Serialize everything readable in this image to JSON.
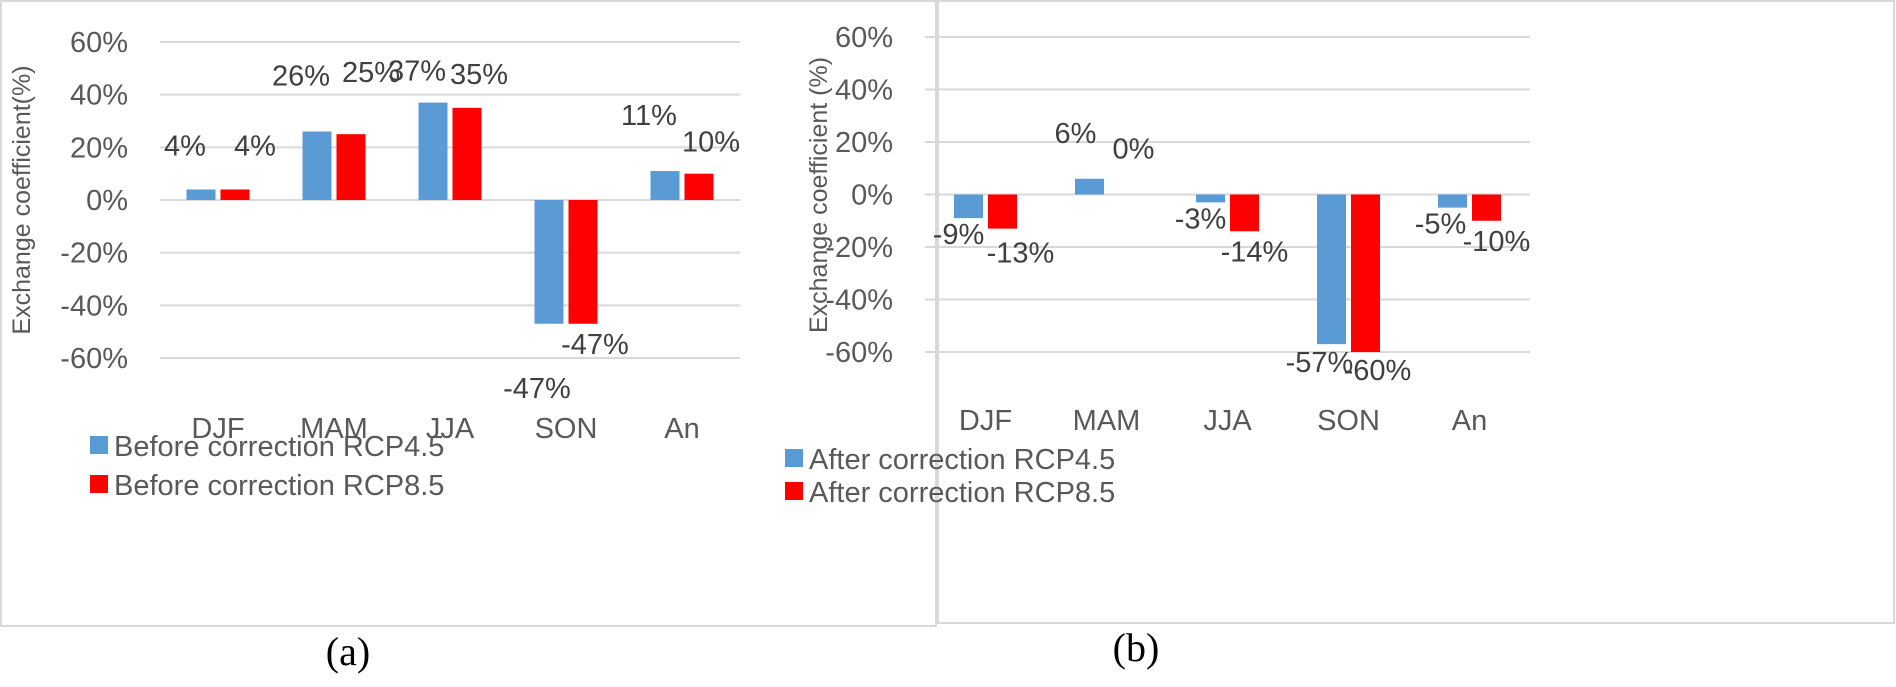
{
  "chart_data": [
    {
      "type": "bar",
      "panel_label": "(a)",
      "ylabel": "Exchange coefficient(%)",
      "xlabel": "",
      "categories": [
        "DJF",
        "MAM",
        "JJA",
        "SON",
        "An"
      ],
      "ylim": [
        -60,
        60
      ],
      "yticks": [
        60,
        40,
        20,
        0,
        -20,
        -40,
        -60
      ],
      "ytick_labels": [
        "60%",
        "40%",
        "20%",
        "0%",
        "-20%",
        "-40%",
        "-60%"
      ],
      "grid": true,
      "legend_position": "bottom-left",
      "series": [
        {
          "name": "Before correction RCP4.5",
          "color": "#5B9BD5",
          "values": [
            4,
            26,
            37,
            -47,
            11
          ],
          "labels": [
            "4%",
            "26%",
            "37%",
            "-47%",
            "11%"
          ]
        },
        {
          "name": "Before correction RCP8.5",
          "color": "#FF0000",
          "values": [
            4,
            25,
            35,
            -47,
            10
          ],
          "labels": [
            "4%",
            "25%",
            "35%",
            "-47%",
            "10%"
          ]
        }
      ]
    },
    {
      "type": "bar",
      "panel_label": "(b)",
      "ylabel": "Exchange coefficient (%)",
      "xlabel": "",
      "categories": [
        "DJF",
        "MAM",
        "JJA",
        "SON",
        "An"
      ],
      "ylim": [
        -60,
        60
      ],
      "yticks": [
        60,
        40,
        20,
        0,
        -20,
        -40,
        -60
      ],
      "ytick_labels": [
        "60%",
        "40%",
        "20%",
        "0%",
        "-20%",
        "-40%",
        "-60%"
      ],
      "grid": true,
      "legend_position": "bottom-left",
      "series": [
        {
          "name": "After correction RCP4.5",
          "color": "#5B9BD5",
          "values": [
            -9,
            6,
            -3,
            -57,
            -5
          ],
          "labels": [
            "-9%",
            "6%",
            "-3%",
            "-57%",
            "-5%"
          ]
        },
        {
          "name": "After correction RCP8.5",
          "color": "#FF0000",
          "values": [
            -13,
            0,
            -14,
            -60,
            -10
          ],
          "labels": [
            "-13%",
            "0%",
            "-14%",
            "-60%",
            "-10%"
          ]
        }
      ]
    }
  ]
}
